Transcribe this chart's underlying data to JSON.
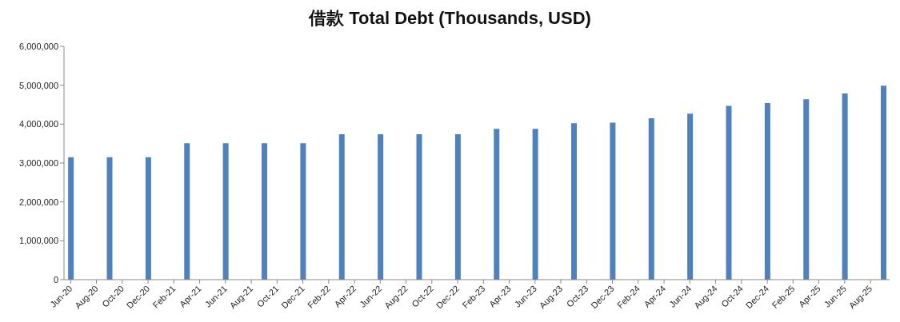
{
  "chart_data": {
    "type": "bar",
    "title": "借款 Total Debt (Thousands, USD)",
    "x": [
      "2020-06",
      "2020-09",
      "2020-12",
      "2021-03",
      "2021-06",
      "2021-09",
      "2021-12",
      "2022-03",
      "2022-06",
      "2022-09",
      "2022-12",
      "2023-03",
      "2023-06",
      "2023-09",
      "2023-12",
      "2024-03",
      "2024-06",
      "2024-09",
      "2024-12",
      "2025-03",
      "2025-06",
      "2025-09"
    ],
    "values": [
      3150000,
      3150000,
      3150000,
      3510000,
      3510000,
      3510000,
      3510000,
      3740000,
      3740000,
      3740000,
      3740000,
      3880000,
      3880000,
      4020000,
      4040000,
      4150000,
      4270000,
      4470000,
      4540000,
      4640000,
      4790000,
      4990000
    ],
    "color": "#4f81bd",
    "xlim": [
      "2020-05-16",
      "2025-09-16"
    ],
    "xticks": [
      {
        "value": "2020-06",
        "label": "Jun-20"
      },
      {
        "value": "2020-08",
        "label": "Aug-20"
      },
      {
        "value": "2020-10",
        "label": "Oct-20"
      },
      {
        "value": "2020-12",
        "label": "Dec-20"
      },
      {
        "value": "2021-02",
        "label": "Feb-21"
      },
      {
        "value": "2021-04",
        "label": "Apr-21"
      },
      {
        "value": "2021-06",
        "label": "Jun-21"
      },
      {
        "value": "2021-08",
        "label": "Aug-21"
      },
      {
        "value": "2021-10",
        "label": "Oct-21"
      },
      {
        "value": "2021-12",
        "label": "Dec-21"
      },
      {
        "value": "2022-02",
        "label": "Feb-22"
      },
      {
        "value": "2022-04",
        "label": "Apr-22"
      },
      {
        "value": "2022-06",
        "label": "Jun-22"
      },
      {
        "value": "2022-08",
        "label": "Aug-22"
      },
      {
        "value": "2022-10",
        "label": "Oct-22"
      },
      {
        "value": "2022-12",
        "label": "Dec-22"
      },
      {
        "value": "2023-02",
        "label": "Feb-23"
      },
      {
        "value": "2023-04",
        "label": "Apr-23"
      },
      {
        "value": "2023-06",
        "label": "Jun-23"
      },
      {
        "value": "2023-08",
        "label": "Aug-23"
      },
      {
        "value": "2023-10",
        "label": "Oct-23"
      },
      {
        "value": "2023-12",
        "label": "Dec-23"
      },
      {
        "value": "2024-02",
        "label": "Feb-24"
      },
      {
        "value": "2024-04",
        "label": "Apr-24"
      },
      {
        "value": "2024-06",
        "label": "Jun-24"
      },
      {
        "value": "2024-08",
        "label": "Aug-24"
      },
      {
        "value": "2024-10",
        "label": "Oct-24"
      },
      {
        "value": "2024-12",
        "label": "Dec-24"
      },
      {
        "value": "2025-02",
        "label": "Feb-25"
      },
      {
        "value": "2025-04",
        "label": "Apr-25"
      },
      {
        "value": "2025-06",
        "label": "Jun-25"
      },
      {
        "value": "2025-08",
        "label": "Aug-25"
      }
    ],
    "ylim": [
      0,
      6000000
    ],
    "yticks": [
      {
        "value": 0,
        "label": "0"
      },
      {
        "value": 1000000,
        "label": "1,000,000"
      },
      {
        "value": 2000000,
        "label": "2,000,000"
      },
      {
        "value": 3000000,
        "label": "3,000,000"
      },
      {
        "value": 4000000,
        "label": "4,000,000"
      },
      {
        "value": 5000000,
        "label": "5,000,000"
      },
      {
        "value": 6000000,
        "label": "6,000,000"
      }
    ],
    "grid": false,
    "legend": false
  }
}
